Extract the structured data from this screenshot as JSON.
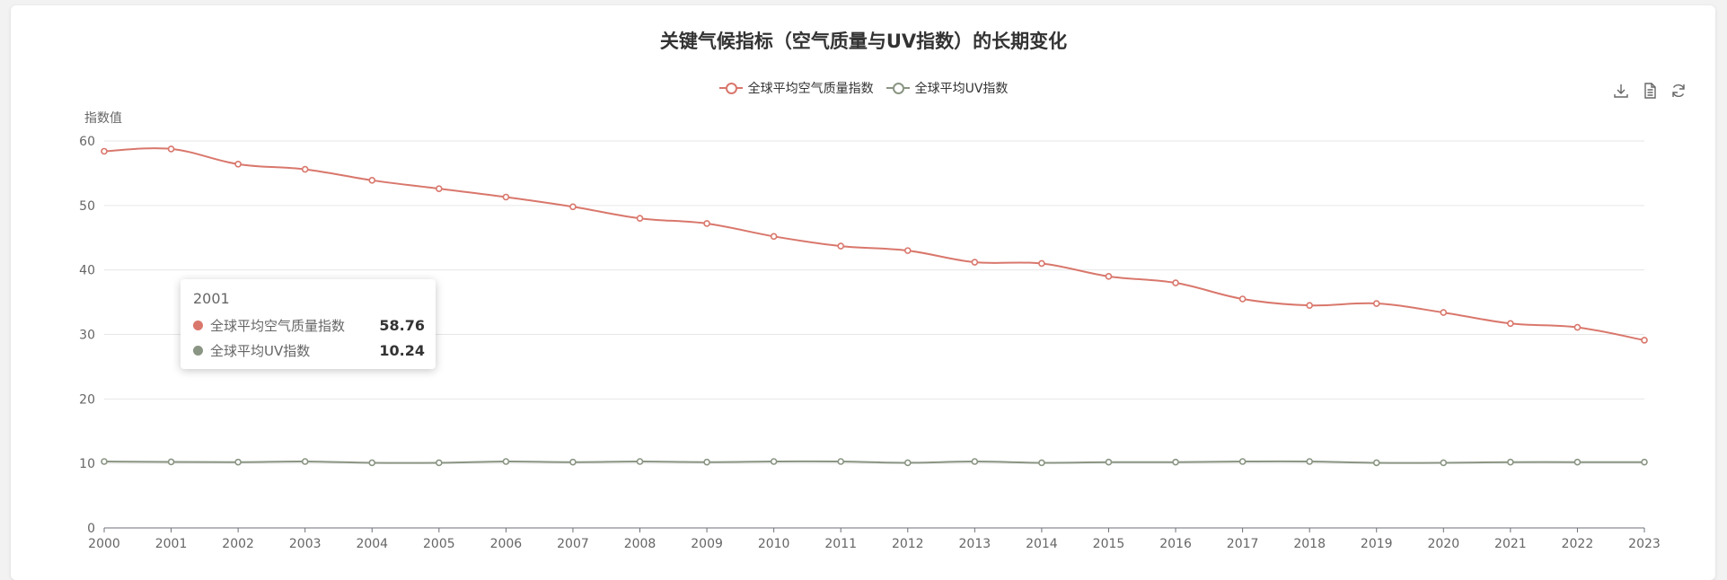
{
  "chart_data": {
    "type": "line",
    "title": "关键气候指标（空气质量与UV指数）的长期变化",
    "ylabel": "指数值",
    "xlabel": "",
    "ylim": [
      0,
      60
    ],
    "yticks": [
      0,
      10,
      20,
      30,
      40,
      50,
      60
    ],
    "grid": true,
    "smooth": true,
    "legend_position": "top-center",
    "categories": [
      "2000",
      "2001",
      "2002",
      "2003",
      "2004",
      "2005",
      "2006",
      "2007",
      "2008",
      "2009",
      "2010",
      "2011",
      "2012",
      "2013",
      "2014",
      "2015",
      "2016",
      "2017",
      "2018",
      "2019",
      "2020",
      "2021",
      "2022",
      "2023"
    ],
    "series": [
      {
        "name": "全球平均空气质量指数",
        "color": "#d9776c",
        "values": [
          58.4,
          58.76,
          56.4,
          55.6,
          53.9,
          52.6,
          51.3,
          49.8,
          48.0,
          47.2,
          45.2,
          43.7,
          43.0,
          41.2,
          41.0,
          39.0,
          38.0,
          35.5,
          34.5,
          34.8,
          33.4,
          31.7,
          31.1,
          29.1
        ]
      },
      {
        "name": "全球平均UV指数",
        "color": "#8a9583",
        "values": [
          10.3,
          10.24,
          10.2,
          10.3,
          10.1,
          10.1,
          10.3,
          10.2,
          10.3,
          10.2,
          10.3,
          10.3,
          10.1,
          10.3,
          10.1,
          10.2,
          10.2,
          10.3,
          10.3,
          10.1,
          10.1,
          10.2,
          10.2,
          10.2
        ]
      }
    ]
  },
  "tooltip": {
    "title": "2001",
    "rows": [
      {
        "name": "全球平均空气质量指数",
        "value": "58.76",
        "color": "#d9776c"
      },
      {
        "name": "全球平均UV指数",
        "value": "10.24",
        "color": "#8a9583"
      }
    ]
  },
  "toolbox": {
    "icons": [
      "download-icon",
      "data-view-icon",
      "refresh-icon"
    ]
  }
}
